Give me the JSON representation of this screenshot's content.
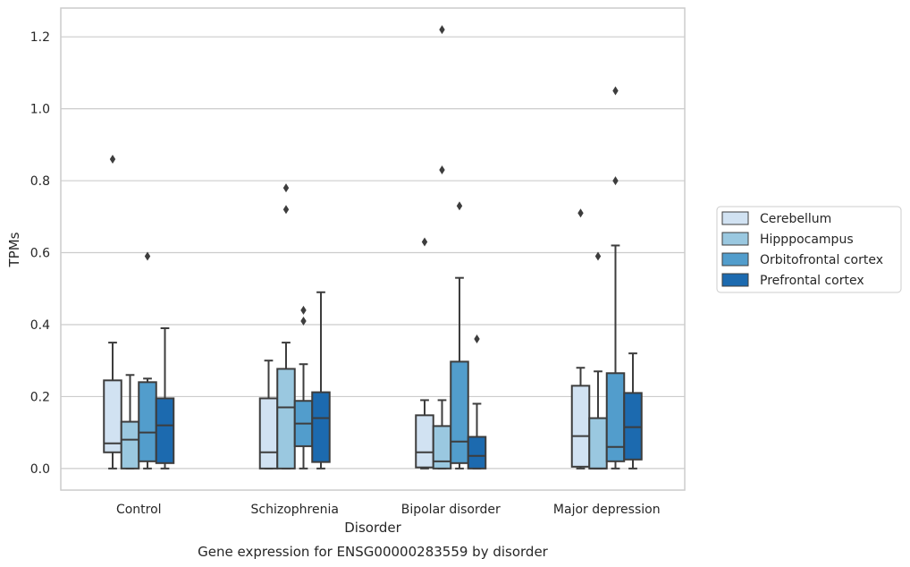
{
  "chart_data": {
    "type": "box",
    "title": "",
    "caption": "Gene expression for ENSG00000283559 by disorder",
    "xlabel": "Disorder",
    "ylabel": "TPMs",
    "ylim": [
      -0.06,
      1.28
    ],
    "yticks": [
      0.0,
      0.2,
      0.4,
      0.6,
      0.8,
      1.0,
      1.2
    ],
    "ytick_labels": [
      "0.0",
      "0.2",
      "0.4",
      "0.6",
      "0.8",
      "1.0",
      "1.2"
    ],
    "grid": "horizontal",
    "legend_position": "right",
    "categories": [
      "Control",
      "Schizophrenia",
      "Bipolar disorder",
      "Major depression"
    ],
    "series": [
      {
        "name": "Cerebellum",
        "color": "#d1e2f2",
        "boxes": [
          {
            "whislo": 0.0,
            "q1": 0.045,
            "med": 0.07,
            "q3": 0.245,
            "whishi": 0.35,
            "fliers": [
              0.86
            ]
          },
          {
            "whislo": 0.0,
            "q1": 0.0,
            "med": 0.045,
            "q3": 0.195,
            "whishi": 0.3,
            "fliers": []
          },
          {
            "whislo": 0.0,
            "q1": 0.003,
            "med": 0.045,
            "q3": 0.148,
            "whishi": 0.19,
            "fliers": [
              0.63
            ]
          },
          {
            "whislo": 0.0,
            "q1": 0.005,
            "med": 0.09,
            "q3": 0.23,
            "whishi": 0.28,
            "fliers": [
              0.71
            ]
          }
        ]
      },
      {
        "name": "Hipppocampus",
        "color": "#9ac8e0",
        "boxes": [
          {
            "whislo": 0.0,
            "q1": 0.0,
            "med": 0.08,
            "q3": 0.13,
            "whishi": 0.26,
            "fliers": []
          },
          {
            "whislo": 0.0,
            "q1": 0.0,
            "med": 0.17,
            "q3": 0.277,
            "whishi": 0.35,
            "fliers": [
              0.72,
              0.78
            ]
          },
          {
            "whislo": 0.0,
            "q1": 0.0,
            "med": 0.02,
            "q3": 0.118,
            "whishi": 0.19,
            "fliers": [
              0.83,
              1.22
            ]
          },
          {
            "whislo": 0.0,
            "q1": 0.0,
            "med": 0.0,
            "q3": 0.14,
            "whishi": 0.27,
            "fliers": [
              0.59
            ]
          }
        ]
      },
      {
        "name": "Orbitofrontal cortex",
        "color": "#529dcc",
        "boxes": [
          {
            "whislo": 0.0,
            "q1": 0.02,
            "med": 0.1,
            "q3": 0.24,
            "whishi": 0.25,
            "fliers": [
              0.59
            ]
          },
          {
            "whislo": 0.0,
            "q1": 0.062,
            "med": 0.125,
            "q3": 0.188,
            "whishi": 0.29,
            "fliers": [
              0.41,
              0.44
            ]
          },
          {
            "whislo": 0.0,
            "q1": 0.015,
            "med": 0.075,
            "q3": 0.297,
            "whishi": 0.53,
            "fliers": [
              0.73
            ]
          },
          {
            "whislo": 0.0,
            "q1": 0.02,
            "med": 0.06,
            "q3": 0.265,
            "whishi": 0.62,
            "fliers": [
              0.8,
              1.05
            ]
          }
        ]
      },
      {
        "name": "Prefrontal cortex",
        "color": "#1c6aaf",
        "boxes": [
          {
            "whislo": 0.0,
            "q1": 0.015,
            "med": 0.12,
            "q3": 0.195,
            "whishi": 0.39,
            "fliers": []
          },
          {
            "whislo": 0.0,
            "q1": 0.018,
            "med": 0.14,
            "q3": 0.212,
            "whishi": 0.49,
            "fliers": []
          },
          {
            "whislo": 0.0,
            "q1": 0.0,
            "med": 0.035,
            "q3": 0.088,
            "whishi": 0.18,
            "fliers": [
              0.36
            ]
          },
          {
            "whislo": 0.0,
            "q1": 0.025,
            "med": 0.115,
            "q3": 0.21,
            "whishi": 0.32,
            "fliers": []
          }
        ]
      }
    ]
  }
}
